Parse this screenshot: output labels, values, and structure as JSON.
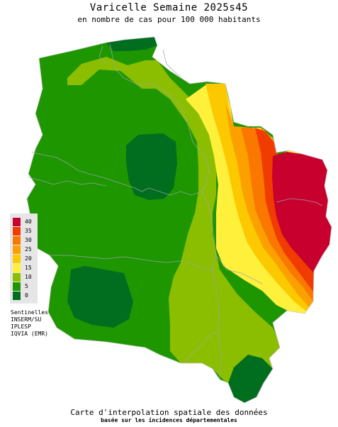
{
  "title": "Varicelle Semaine 2025s45",
  "subtitle": "en nombre de cas pour 100 000 habitants",
  "legend": {
    "items": [
      {
        "label": "40",
        "color": "#c8002d"
      },
      {
        "label": "35",
        "color": "#f03c00"
      },
      {
        "label": "30",
        "color": "#fa7800"
      },
      {
        "label": "25",
        "color": "#fca000"
      },
      {
        "label": "20",
        "color": "#fcc800"
      },
      {
        "label": "15",
        "color": "#fff03c"
      },
      {
        "label": "10",
        "color": "#8cbe00"
      },
      {
        "label": "5",
        "color": "#1e9600"
      },
      {
        "label": "0",
        "color": "#006e1e"
      }
    ]
  },
  "sources": [
    "Sentinelles",
    "INSERM/SU",
    "IPLESP",
    "IQVIA (EMR)"
  ],
  "footer": {
    "main": "Carte d'interpolation spatiale des données",
    "sub": "basée sur les incidences départementales"
  }
}
